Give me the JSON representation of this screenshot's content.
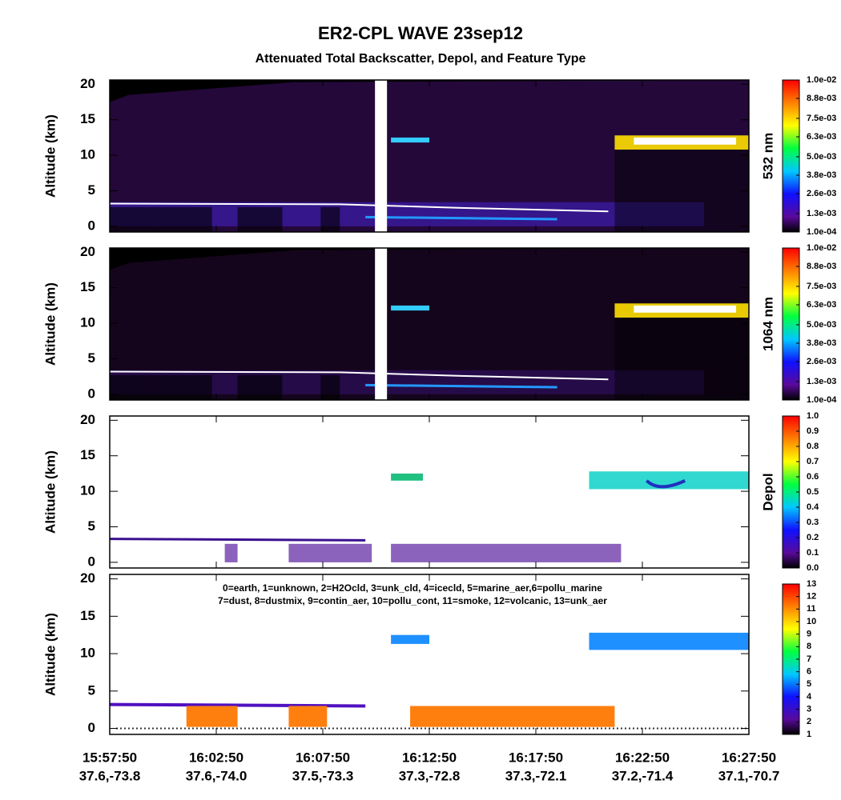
{
  "title": "ER2-CPL WAVE 23sep12",
  "subtitle": "Attenuated Total Backscatter, Depol, and Feature Type",
  "chart_data": [
    {
      "type": "curtain",
      "ylabel": "Altitude (km)",
      "ylim": [
        -0.8,
        20.6
      ],
      "yticks": [
        0,
        5,
        10,
        15,
        20
      ],
      "colorbar": {
        "label": "532 nm",
        "lim": [
          0.0001,
          0.01
        ],
        "ticks": [
          {
            "value": 0.0001,
            "label": "1.0e-04"
          },
          {
            "value": 0.0013,
            "label": "1.3e-03"
          },
          {
            "value": 0.0026,
            "label": "2.6e-03"
          },
          {
            "value": 0.0038,
            "label": "3.8e-03"
          },
          {
            "value": 0.005,
            "label": "5.0e-03"
          },
          {
            "value": 0.0063,
            "label": "6.3e-03"
          },
          {
            "value": 0.0075,
            "label": "7.5e-03"
          },
          {
            "value": 0.0088,
            "label": "8.8e-03"
          },
          {
            "value": 0.01,
            "label": "1.0e-02"
          }
        ]
      }
    },
    {
      "type": "curtain",
      "ylabel": "Altitude (km)",
      "ylim": [
        -0.8,
        20.6
      ],
      "yticks": [
        0,
        5,
        10,
        15,
        20
      ],
      "colorbar": {
        "label": "1064 nm",
        "lim": [
          0.0001,
          0.01
        ],
        "ticks": [
          {
            "value": 0.0001,
            "label": "1.0e-04"
          },
          {
            "value": 0.0013,
            "label": "1.3e-03"
          },
          {
            "value": 0.0026,
            "label": "2.6e-03"
          },
          {
            "value": 0.0038,
            "label": "3.8e-03"
          },
          {
            "value": 0.005,
            "label": "5.0e-03"
          },
          {
            "value": 0.0063,
            "label": "6.3e-03"
          },
          {
            "value": 0.0075,
            "label": "7.5e-03"
          },
          {
            "value": 0.0088,
            "label": "8.8e-03"
          },
          {
            "value": 0.01,
            "label": "1.0e-02"
          }
        ]
      }
    },
    {
      "type": "depol",
      "ylabel": "Altitude (km)",
      "ylim": [
        -0.8,
        20.6
      ],
      "yticks": [
        0,
        5,
        10,
        15,
        20
      ],
      "colorbar": {
        "label": "Depol",
        "lim": [
          0,
          1
        ],
        "ticks": [
          {
            "value": 0,
            "label": "0.0"
          },
          0.1,
          0.2,
          0.3,
          0.4,
          0.5,
          0.6,
          0.7,
          0.8,
          0.9,
          {
            "value": 1,
            "label": "1.0"
          }
        ]
      }
    },
    {
      "type": "feature",
      "ylabel": "Altitude (km)",
      "ylim": [
        -0.8,
        20.6
      ],
      "yticks": [
        0,
        5,
        10,
        15,
        20
      ],
      "annotations": [
        "0=earth, 1=unknown, 2=H2Ocld, 3=unk_cld, 4=icecld, 5=marine_aer,6=pollu_marine",
        "7=dust, 8=dustmix, 9=contin_aer, 10=pollu_cont, 11=smoke, 12=volcanic, 13=unk_aer"
      ],
      "colorbar": {
        "lim": [
          1,
          13
        ],
        "ticks": [
          1,
          2,
          3,
          4,
          5,
          6,
          7,
          8,
          9,
          10,
          11,
          12,
          13
        ]
      },
      "categories": [
        "15:57:50",
        "16:02:50",
        "16:07:50",
        "16:12:50",
        "16:17:50",
        "16:22:50",
        "16:27:50"
      ],
      "locations": [
        "37.6,-73.8",
        "37.6,-74.0",
        "37.5,-73.3",
        "37.3,-72.8",
        "37.3,-72.1",
        "37.2,-71.4",
        "37.1,-70.7"
      ]
    }
  ]
}
